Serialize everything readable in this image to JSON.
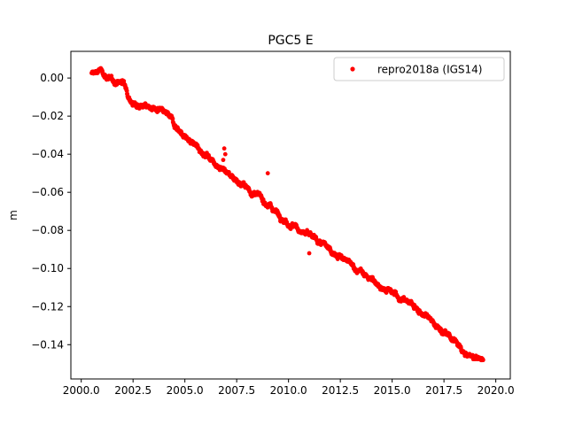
{
  "chart_data": {
    "type": "scatter",
    "title": "PGC5 E",
    "xlabel": "",
    "ylabel": "m",
    "xlim": [
      1999.5,
      2020.7
    ],
    "ylim": [
      -0.158,
      0.014
    ],
    "xticks": [
      2000.0,
      2002.5,
      2005.0,
      2007.5,
      2010.0,
      2012.5,
      2015.0,
      2017.5,
      2020.0
    ],
    "xtick_labels": [
      "2000.0",
      "2002.5",
      "2005.0",
      "2007.5",
      "2010.0",
      "2012.5",
      "2015.0",
      "2017.5",
      "2020.0"
    ],
    "yticks": [
      0.0,
      -0.02,
      -0.04,
      -0.06,
      -0.08,
      -0.1,
      -0.12,
      -0.14
    ],
    "ytick_labels": [
      "0.00",
      "−0.02",
      "−0.04",
      "−0.06",
      "−0.08",
      "−0.10",
      "−0.12",
      "−0.14"
    ],
    "grid": false,
    "legend_position": "top-right",
    "series": [
      {
        "name": "repro2018a (IGS14)",
        "color": "#ff0000",
        "marker": "circle",
        "trend_points": [
          {
            "x": 2000.5,
            "y": 0.002
          },
          {
            "x": 2000.9,
            "y": 0.004
          },
          {
            "x": 2001.5,
            "y": -0.002
          },
          {
            "x": 2002.0,
            "y": -0.002
          },
          {
            "x": 2002.5,
            "y": -0.013
          },
          {
            "x": 2003.5,
            "y": -0.016
          },
          {
            "x": 2004.2,
            "y": -0.02
          },
          {
            "x": 2005.0,
            "y": -0.031
          },
          {
            "x": 2006.0,
            "y": -0.04
          },
          {
            "x": 2007.0,
            "y": -0.049
          },
          {
            "x": 2008.0,
            "y": -0.058
          },
          {
            "x": 2009.0,
            "y": -0.066
          },
          {
            "x": 2010.0,
            "y": -0.076
          },
          {
            "x": 2011.0,
            "y": -0.083
          },
          {
            "x": 2012.0,
            "y": -0.09
          },
          {
            "x": 2013.0,
            "y": -0.098
          },
          {
            "x": 2014.0,
            "y": -0.106
          },
          {
            "x": 2015.0,
            "y": -0.113
          },
          {
            "x": 2016.0,
            "y": -0.119
          },
          {
            "x": 2017.0,
            "y": -0.129
          },
          {
            "x": 2018.0,
            "y": -0.138
          },
          {
            "x": 2018.6,
            "y": -0.146
          },
          {
            "x": 2019.4,
            "y": -0.148
          }
        ],
        "outliers": [
          {
            "x": 2006.9,
            "y": -0.037
          },
          {
            "x": 2006.95,
            "y": -0.04
          },
          {
            "x": 2006.85,
            "y": -0.043
          },
          {
            "x": 2009.0,
            "y": -0.05
          },
          {
            "x": 2011.0,
            "y": -0.092
          }
        ]
      }
    ]
  }
}
